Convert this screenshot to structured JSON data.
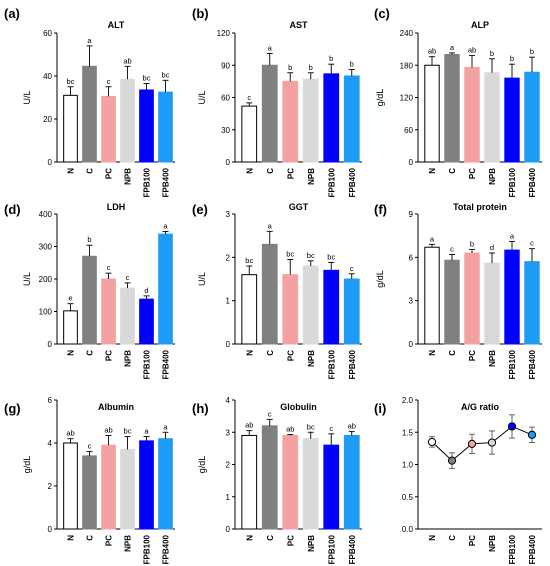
{
  "chart_data": [
    {
      "panel": "(a)",
      "type": "bar",
      "title": "ALT",
      "ylabel": "U/L",
      "ylim": [
        0,
        60
      ],
      "yticks": [
        0,
        20,
        40,
        60
      ],
      "categories": [
        "N",
        "C",
        "PC",
        "NPB",
        "FPB100",
        "FPB400"
      ],
      "values": [
        31,
        44.5,
        30.5,
        38.5,
        33.5,
        32.5
      ],
      "errors": [
        4,
        9.5,
        4.5,
        6,
        3,
        5.5
      ],
      "letters": [
        "bc",
        "a",
        "c",
        "ab",
        "bc",
        "bc"
      ]
    },
    {
      "panel": "(b)",
      "type": "bar",
      "title": "AST",
      "ylabel": "U/L",
      "ylim": [
        0,
        120
      ],
      "yticks": [
        0,
        30,
        60,
        90,
        120
      ],
      "categories": [
        "N",
        "C",
        "PC",
        "NPB",
        "FPB100",
        "FPB400"
      ],
      "values": [
        52,
        90,
        75,
        77,
        82,
        80
      ],
      "errors": [
        3,
        11,
        8,
        6,
        9,
        6
      ],
      "letters": [
        "c",
        "a",
        "b",
        "b",
        "b",
        "b"
      ]
    },
    {
      "panel": "(c)",
      "type": "bar",
      "title": "ALP",
      "ylabel": "g/dL",
      "ylim": [
        0,
        240
      ],
      "yticks": [
        0,
        60,
        120,
        180,
        240
      ],
      "categories": [
        "N",
        "C",
        "PC",
        "NPB",
        "FPB100",
        "FPB400"
      ],
      "values": [
        180,
        200,
        176,
        166,
        156,
        167
      ],
      "errors": [
        16,
        3,
        22,
        26,
        26,
        28
      ],
      "letters": [
        "ab",
        "a",
        "ab",
        "b",
        "b",
        "b"
      ]
    },
    {
      "panel": "(d)",
      "type": "bar",
      "title": "LDH",
      "ylabel": "U/L",
      "ylim": [
        0,
        400
      ],
      "yticks": [
        0,
        100,
        200,
        300,
        400
      ],
      "categories": [
        "N",
        "C",
        "PC",
        "NPB",
        "FPB100",
        "FPB400"
      ],
      "values": [
        102,
        270,
        200,
        172,
        138,
        338
      ],
      "errors": [
        22,
        34,
        18,
        16,
        10,
        8
      ],
      "letters": [
        "e",
        "b",
        "c",
        "c",
        "d",
        "a"
      ]
    },
    {
      "panel": "(e)",
      "type": "bar",
      "title": "GGT",
      "ylabel": "U/L",
      "ylim": [
        0,
        3
      ],
      "yticks": [
        0,
        1,
        2,
        3
      ],
      "categories": [
        "N",
        "C",
        "PC",
        "NPB",
        "FPB100",
        "FPB400"
      ],
      "values": [
        1.6,
        2.3,
        1.6,
        1.8,
        1.7,
        1.5
      ],
      "errors": [
        0.2,
        0.3,
        0.35,
        0.12,
        0.18,
        0.12
      ],
      "letters": [
        "bc",
        "a",
        "bc",
        "bc",
        "bc",
        "c"
      ]
    },
    {
      "panel": "(f)",
      "type": "bar",
      "title": "Total protein",
      "ylabel": "g/dL",
      "ylim": [
        0,
        9
      ],
      "yticks": [
        0,
        3,
        6,
        9
      ],
      "categories": [
        "N",
        "C",
        "PC",
        "NPB",
        "FPB100",
        "FPB400"
      ],
      "values": [
        6.7,
        5.8,
        6.3,
        5.6,
        6.5,
        5.7
      ],
      "errors": [
        0.2,
        0.4,
        0.25,
        0.7,
        0.6,
        0.9
      ],
      "letters": [
        "a",
        "c",
        "b",
        "d",
        "a",
        "c"
      ]
    },
    {
      "panel": "(g)",
      "type": "bar",
      "title": "Albumin",
      "ylabel": "g/dL",
      "ylim": [
        0,
        6
      ],
      "yticks": [
        0,
        2,
        4,
        6
      ],
      "categories": [
        "N",
        "C",
        "PC",
        "NPB",
        "FPB100",
        "FPB400"
      ],
      "values": [
        4.0,
        3.4,
        3.9,
        3.7,
        4.1,
        4.2
      ],
      "errors": [
        0.2,
        0.2,
        0.45,
        0.6,
        0.2,
        0.3
      ],
      "letters": [
        "ab",
        "c",
        "ab",
        "bc",
        "a",
        "a"
      ]
    },
    {
      "panel": "(h)",
      "type": "bar",
      "title": "Globulin",
      "ylabel": "g/dL",
      "ylim": [
        0,
        4
      ],
      "yticks": [
        0,
        1,
        2,
        3,
        4
      ],
      "categories": [
        "N",
        "C",
        "PC",
        "NPB",
        "FPB100",
        "FPB400"
      ],
      "values": [
        2.9,
        3.2,
        2.9,
        2.8,
        2.6,
        2.9
      ],
      "errors": [
        0.15,
        0.2,
        0.03,
        0.2,
        0.35,
        0.12
      ],
      "letters": [
        "ab",
        "c",
        "ab",
        "bc",
        "c",
        "ab"
      ]
    },
    {
      "panel": "(i)",
      "type": "scatter",
      "title": "A/G ratio",
      "ylabel": "",
      "ylim": [
        0,
        2
      ],
      "yticks": [
        0.0,
        0.5,
        1.0,
        1.5,
        2.0
      ],
      "categories": [
        "N",
        "C",
        "PC",
        "NPB",
        "FPB100",
        "FPB400"
      ],
      "values": [
        1.35,
        1.06,
        1.32,
        1.34,
        1.59,
        1.46
      ],
      "errors": [
        0.08,
        0.12,
        0.15,
        0.18,
        0.18,
        0.12
      ],
      "letters": []
    }
  ],
  "colors": {
    "groups": [
      "#ffffff",
      "#808080",
      "#f4a1a1",
      "#d9d9d9",
      "#0000ff",
      "#1e9cf5"
    ],
    "edges": [
      "#000000",
      "#808080",
      "#f4a1a1",
      "#d9d9d9",
      "#0000ff",
      "#1e9cf5"
    ],
    "line": "#000000"
  }
}
